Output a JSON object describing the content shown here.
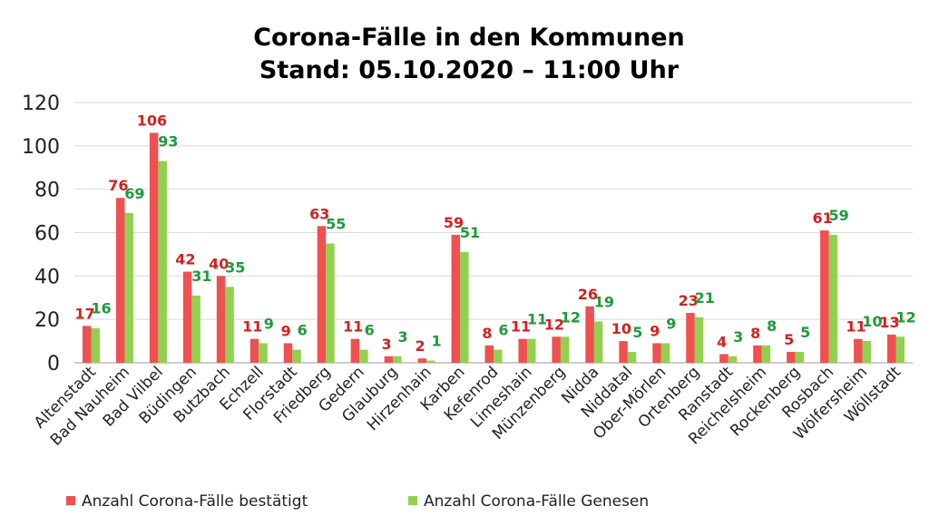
{
  "chart_data": {
    "type": "bar",
    "title": "Corona-Fälle in den Kommunen",
    "subtitle": "Stand: 05.10.2020 – 11:00 Uhr",
    "categories": [
      "Altenstadt",
      "Bad Nauheim",
      "Bad Vilbel",
      "Büdingen",
      "Butzbach",
      "Echzell",
      "Florstadt",
      "Friedberg",
      "Gedern",
      "Glauburg",
      "Hirzenhain",
      "Karben",
      "Kefenrod",
      "Limeshain",
      "Münzenberg",
      "Nidda",
      "Niddatal",
      "Ober-Mörlen",
      "Ortenberg",
      "Ranstadt",
      "Reichelsheim",
      "Rockenberg",
      "Rosbach",
      "Wölfersheim",
      "Wöllstadt"
    ],
    "series": [
      {
        "name": "Anzahl Corona-Fälle bestätigt",
        "color": "#ef5050",
        "label_color": "#d42020",
        "values": [
          17,
          76,
          106,
          42,
          40,
          11,
          9,
          63,
          11,
          3,
          2,
          59,
          8,
          11,
          12,
          26,
          10,
          9,
          23,
          4,
          8,
          5,
          61,
          11,
          13
        ]
      },
      {
        "name": "Anzahl Corona-Fälle Genesen",
        "color": "#92d050",
        "label_color": "#1e9a3c",
        "values": [
          16,
          69,
          93,
          31,
          35,
          9,
          6,
          55,
          6,
          3,
          1,
          51,
          6,
          11,
          12,
          19,
          5,
          9,
          21,
          3,
          8,
          5,
          59,
          10,
          12
        ]
      }
    ],
    "yticks": [
      0,
      20,
      40,
      60,
      80,
      100,
      120
    ],
    "ylim": [
      0,
      120
    ],
    "grid": true,
    "legend_position": "bottom"
  }
}
